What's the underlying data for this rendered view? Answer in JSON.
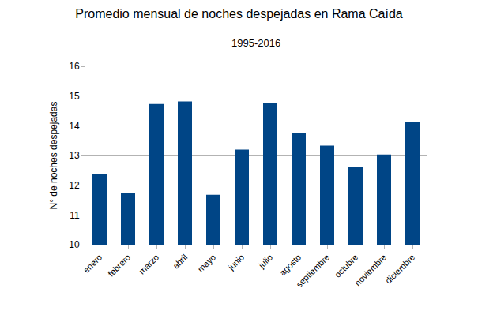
{
  "chart_data": {
    "type": "bar",
    "title": "Promedio mensual de noches despejadas en Rama Caída",
    "subtitle": "1995-2016",
    "y_label": "N° de noches despejadas",
    "categories": [
      "enero",
      "febrero",
      "marzo",
      "abril",
      "mayo",
      "junio",
      "julio",
      "agosto",
      "septiembre",
      "octubre",
      "noviembre",
      "diciembre"
    ],
    "values": [
      12.38,
      11.73,
      14.73,
      14.82,
      11.68,
      13.2,
      14.77,
      13.77,
      13.33,
      12.63,
      13.03,
      14.12
    ],
    "color": "#004586",
    "ylim": [
      10,
      16
    ],
    "yticks": [
      10,
      11,
      12,
      13,
      14,
      15,
      16
    ],
    "grid": true
  }
}
